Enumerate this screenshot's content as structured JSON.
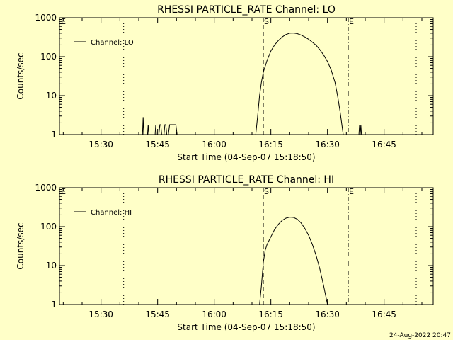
{
  "colors": {
    "background": "#ffffc8",
    "foreground": "#000000"
  },
  "footer_date": "24-Aug-2022 20:47",
  "chart_data": [
    {
      "type": "line",
      "title": "RHESSI PARTICLE_RATE Channel: LO",
      "xlabel": "Start Time (04-Sep-07 15:18:50)",
      "ylabel": "Counts/sec",
      "yscale": "log",
      "xlim": [
        "15:19:00",
        "16:58:00"
      ],
      "ylim": [
        1,
        1000
      ],
      "x_ticks": [
        "15:30",
        "15:45",
        "16:00",
        "16:15",
        "16:30",
        "16:45"
      ],
      "y_ticks": [
        "1",
        "10",
        "100",
        "1000"
      ],
      "legend": {
        "position": "top-left",
        "entries": [
          "Channel: LO"
        ]
      },
      "vertical_markers": [
        {
          "time": "15:36:00",
          "style": "dotted",
          "label": ""
        },
        {
          "time": "16:13:00",
          "style": "dashed",
          "label": "S"
        },
        {
          "time": "16:35:30",
          "style": "dashdot",
          "label": "E"
        },
        {
          "time": "16:53:30",
          "style": "dotted",
          "label": ""
        }
      ],
      "corner_label": "E",
      "series": [
        {
          "name": "Channel: LO",
          "points": [
            [
              "15:41:00",
              1
            ],
            [
              "15:41:10",
              2.8
            ],
            [
              "15:41:20",
              1
            ],
            [
              "15:42:20",
              1
            ],
            [
              "15:42:30",
              1.8
            ],
            [
              "15:42:40",
              1
            ],
            [
              "15:44:20",
              1
            ],
            [
              "15:44:30",
              1.8
            ],
            [
              "15:44:40",
              1
            ],
            [
              "15:45:20",
              1
            ],
            [
              "15:45:35",
              1.8
            ],
            [
              "15:45:50",
              1.8
            ],
            [
              "15:46:05",
              1
            ],
            [
              "15:46:40",
              1
            ],
            [
              "15:46:55",
              1.8
            ],
            [
              "15:47:10",
              1.8
            ],
            [
              "15:47:25",
              1
            ],
            [
              "15:47:50",
              1
            ],
            [
              "15:48:10",
              1.8
            ],
            [
              "15:49:50",
              1.8
            ],
            [
              "15:50:10",
              1
            ],
            [
              "16:11:00",
              1
            ],
            [
              "16:11:30",
              3
            ],
            [
              "16:12:00",
              10
            ],
            [
              "16:12:30",
              22
            ],
            [
              "16:13:00",
              40
            ],
            [
              "16:14:00",
              80
            ],
            [
              "16:15:00",
              140
            ],
            [
              "16:16:00",
              200
            ],
            [
              "16:17:00",
              260
            ],
            [
              "16:18:00",
              320
            ],
            [
              "16:19:00",
              370
            ],
            [
              "16:20:00",
              400
            ],
            [
              "16:21:00",
              405
            ],
            [
              "16:22:00",
              390
            ],
            [
              "16:23:00",
              360
            ],
            [
              "16:24:00",
              320
            ],
            [
              "16:25:00",
              280
            ],
            [
              "16:26:00",
              235
            ],
            [
              "16:27:00",
              195
            ],
            [
              "16:28:00",
              150
            ],
            [
              "16:29:00",
              110
            ],
            [
              "16:30:00",
              75
            ],
            [
              "16:31:00",
              45
            ],
            [
              "16:32:00",
              22
            ],
            [
              "16:32:40",
              10
            ],
            [
              "16:33:20",
              4
            ],
            [
              "16:34:10",
              1
            ],
            [
              "16:38:20",
              1
            ],
            [
              "16:38:30",
              1.8
            ],
            [
              "16:38:40",
              1
            ],
            [
              "16:38:50",
              1.8
            ],
            [
              "16:39:00",
              1
            ]
          ]
        }
      ]
    },
    {
      "type": "line",
      "title": "RHESSI PARTICLE_RATE Channel: HI",
      "xlabel": "Start Time (04-Sep-07 15:18:50)",
      "ylabel": "Counts/sec",
      "yscale": "log",
      "xlim": [
        "15:19:00",
        "16:58:00"
      ],
      "ylim": [
        1,
        1000
      ],
      "x_ticks": [
        "15:30",
        "15:45",
        "16:00",
        "16:15",
        "16:30",
        "16:45"
      ],
      "y_ticks": [
        "1",
        "10",
        "100",
        "1000"
      ],
      "legend": {
        "position": "top-left",
        "entries": [
          "Channel: HI"
        ]
      },
      "vertical_markers": [
        {
          "time": "15:36:00",
          "style": "dotted",
          "label": ""
        },
        {
          "time": "16:13:00",
          "style": "dashed",
          "label": "S"
        },
        {
          "time": "16:35:30",
          "style": "dashdot",
          "label": "E"
        },
        {
          "time": "16:53:30",
          "style": "dotted",
          "label": ""
        }
      ],
      "corner_label": "E",
      "series": [
        {
          "name": "Channel: HI",
          "points": [
            [
              "16:12:00",
              1
            ],
            [
              "16:12:30",
              3
            ],
            [
              "16:13:00",
              12
            ],
            [
              "16:13:30",
              25
            ],
            [
              "16:14:00",
              35
            ],
            [
              "16:15:00",
              55
            ],
            [
              "16:16:00",
              85
            ],
            [
              "16:17:00",
              115
            ],
            [
              "16:18:00",
              145
            ],
            [
              "16:19:00",
              165
            ],
            [
              "16:20:00",
              175
            ],
            [
              "16:21:00",
              172
            ],
            [
              "16:22:00",
              155
            ],
            [
              "16:23:00",
              125
            ],
            [
              "16:24:00",
              90
            ],
            [
              "16:25:00",
              60
            ],
            [
              "16:26:00",
              35
            ],
            [
              "16:27:00",
              18
            ],
            [
              "16:28:00",
              8
            ],
            [
              "16:29:00",
              3
            ],
            [
              "16:30:00",
              1
            ]
          ]
        }
      ]
    }
  ]
}
